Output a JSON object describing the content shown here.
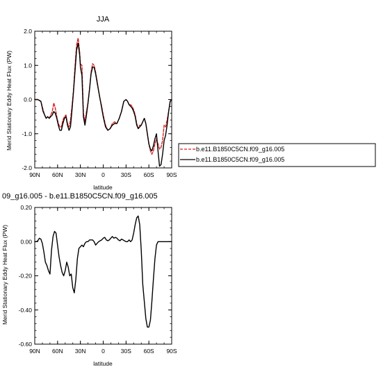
{
  "chart_data": [
    {
      "type": "line",
      "title": "JJA",
      "xlabel": "latitude",
      "ylabel": "Merid Stationary Eddy Heat Flux (PW)",
      "xlim": [
        90,
        -90
      ],
      "ylim": [
        -2.0,
        2.0
      ],
      "x_ticks": [
        {
          "value": 90,
          "label": "90N"
        },
        {
          "value": 60,
          "label": "60N"
        },
        {
          "value": 30,
          "label": "30N"
        },
        {
          "value": 0,
          "label": "0"
        },
        {
          "value": -30,
          "label": "30S"
        },
        {
          "value": -60,
          "label": "60S"
        },
        {
          "value": -90,
          "label": "90S"
        }
      ],
      "y_ticks": [
        {
          "value": 2.0,
          "label": "2.0"
        },
        {
          "value": 1.0,
          "label": "1.0"
        },
        {
          "value": 0.0,
          "label": "0.0"
        },
        {
          "value": -1.0,
          "label": "-1.0"
        },
        {
          "value": -2.0,
          "label": "-2.0"
        }
      ],
      "legend_placement": "right",
      "series": [
        {
          "name": "b.e11.B1850C5CN.f09_g16.005",
          "color": "#d62020",
          "dash": "dashed",
          "x": [
            90,
            86,
            82,
            79,
            77,
            75,
            73,
            71,
            69,
            67,
            65,
            63,
            61,
            59,
            57,
            55,
            53,
            51,
            49,
            47,
            45,
            43,
            41,
            39,
            37,
            35,
            33,
            31,
            30,
            28,
            26,
            24,
            22,
            20,
            18,
            16,
            14,
            12,
            10,
            8,
            6,
            4,
            2,
            0,
            -3,
            -6,
            -9,
            -12,
            -15,
            -18,
            -21,
            -24,
            -27,
            -30,
            -32,
            -34,
            -36,
            -38,
            -40,
            -42,
            -44,
            -46,
            -48,
            -50,
            -52,
            -54,
            -56,
            -58,
            -60,
            -62,
            -64,
            -66,
            -68,
            -70,
            -72,
            -74,
            -76,
            -78,
            -80,
            -82,
            -84,
            -86,
            -88,
            -90
          ],
          "y": [
            0.0,
            0.0,
            -0.05,
            -0.3,
            -0.45,
            -0.55,
            -0.5,
            -0.55,
            -0.45,
            -0.35,
            -0.1,
            -0.25,
            -0.5,
            -0.7,
            -0.8,
            -0.8,
            -0.6,
            -0.5,
            -0.45,
            -0.7,
            -0.8,
            -0.6,
            -0.2,
            0.3,
            1.0,
            1.6,
            1.8,
            1.4,
            1.05,
            1.0,
            -0.4,
            -0.65,
            -0.35,
            -0.1,
            0.3,
            0.8,
            1.05,
            1.0,
            0.8,
            0.55,
            0.25,
            0.0,
            -0.2,
            -0.45,
            -0.75,
            -0.9,
            -0.85,
            -0.7,
            -0.65,
            -0.7,
            -0.55,
            -0.35,
            -0.05,
            0.0,
            -0.05,
            -0.15,
            -0.15,
            -0.2,
            -0.3,
            -0.45,
            -0.7,
            -0.85,
            -0.75,
            -0.75,
            -0.65,
            -0.55,
            -0.7,
            -1.0,
            -1.3,
            -1.5,
            -1.6,
            -1.5,
            -1.3,
            -1.15,
            -1.3,
            -1.45,
            -1.4,
            -1.2,
            -0.75,
            -0.8,
            -0.6,
            -0.35,
            -0.05,
            0.0
          ]
        },
        {
          "name": "b.e11.B1850C5CN.f09_g16.005",
          "color": "#000000",
          "dash": "solid",
          "x": [
            90,
            86,
            82,
            79,
            77,
            75,
            73,
            71,
            69,
            67,
            65,
            63,
            61,
            59,
            57,
            55,
            53,
            51,
            49,
            47,
            45,
            43,
            41,
            39,
            37,
            35,
            33,
            31,
            30,
            28,
            26,
            24,
            22,
            20,
            18,
            16,
            14,
            12,
            10,
            8,
            6,
            4,
            2,
            0,
            -3,
            -6,
            -9,
            -12,
            -15,
            -18,
            -21,
            -24,
            -27,
            -30,
            -32,
            -34,
            -36,
            -38,
            -40,
            -42,
            -44,
            -46,
            -48,
            -50,
            -52,
            -54,
            -56,
            -58,
            -60,
            -62,
            -64,
            -66,
            -68,
            -70,
            -72,
            -74,
            -76,
            -78,
            -80,
            -82,
            -84,
            -86,
            -88,
            -90
          ],
          "y": [
            0.0,
            0.0,
            -0.05,
            -0.35,
            -0.45,
            -0.55,
            -0.5,
            -0.55,
            -0.5,
            -0.45,
            -0.35,
            -0.4,
            -0.55,
            -0.75,
            -0.9,
            -0.9,
            -0.7,
            -0.55,
            -0.5,
            -0.75,
            -0.9,
            -0.8,
            -0.3,
            0.25,
            0.85,
            1.45,
            1.65,
            1.3,
            0.95,
            0.7,
            -0.5,
            -0.75,
            -0.45,
            -0.1,
            0.3,
            0.75,
            0.95,
            0.95,
            0.75,
            0.5,
            0.25,
            0.0,
            -0.25,
            -0.5,
            -0.8,
            -0.9,
            -0.85,
            -0.75,
            -0.7,
            -0.7,
            -0.55,
            -0.35,
            -0.05,
            0.0,
            -0.05,
            -0.15,
            -0.2,
            -0.25,
            -0.35,
            -0.5,
            -0.75,
            -0.85,
            -0.8,
            -0.75,
            -0.65,
            -0.55,
            -0.7,
            -1.0,
            -1.3,
            -1.45,
            -1.5,
            -1.35,
            -1.15,
            -1.0,
            -1.5,
            -1.95,
            -1.9,
            -1.6,
            -1.2,
            -1.05,
            -0.75,
            -0.35,
            -0.05,
            0.0
          ]
        }
      ]
    },
    {
      "type": "line",
      "title": "09_g16.005 - b.e11.B1850C5CN.f09_g16.005",
      "xlabel": "latitude",
      "ylabel": "Merid Stationary Eddy Heat Flux (PW)",
      "xlim": [
        90,
        -90
      ],
      "ylim": [
        -0.6,
        0.2
      ],
      "x_ticks": [
        {
          "value": 90,
          "label": "90N"
        },
        {
          "value": 60,
          "label": "60N"
        },
        {
          "value": 30,
          "label": "30N"
        },
        {
          "value": 0,
          "label": "0"
        },
        {
          "value": -30,
          "label": "30S"
        },
        {
          "value": -60,
          "label": "60S"
        },
        {
          "value": -90,
          "label": "90S"
        }
      ],
      "y_ticks": [
        {
          "value": 0.2,
          "label": "0.20"
        },
        {
          "value": 0.0,
          "label": "0.00"
        },
        {
          "value": -0.2,
          "label": "-0.20"
        },
        {
          "value": -0.4,
          "label": "-0.40"
        },
        {
          "value": -0.6,
          "label": "-0.60"
        }
      ],
      "series": [
        {
          "color": "#000000",
          "dash": "solid",
          "x": [
            90,
            88,
            86,
            84,
            82,
            80,
            78,
            76,
            74,
            72,
            70,
            68,
            66,
            64,
            62,
            60,
            58,
            56,
            54,
            52,
            50,
            48,
            46,
            44,
            42,
            40,
            38,
            36,
            34,
            32,
            30,
            28,
            26,
            24,
            22,
            20,
            18,
            16,
            14,
            12,
            10,
            8,
            6,
            4,
            2,
            0,
            -2,
            -4,
            -6,
            -8,
            -10,
            -12,
            -14,
            -16,
            -18,
            -20,
            -22,
            -24,
            -26,
            -28,
            -30,
            -32,
            -34,
            -36,
            -38,
            -40,
            -42,
            -44,
            -46,
            -48,
            -50,
            -52,
            -54,
            -56,
            -58,
            -60,
            -62,
            -64,
            -66,
            -68,
            -70,
            -72,
            -74,
            -76,
            -78,
            -80,
            -82,
            -84,
            -86,
            -88,
            -90
          ],
          "y": [
            0.0,
            0.0,
            0.005,
            0.02,
            0.015,
            -0.01,
            -0.06,
            -0.12,
            -0.14,
            -0.17,
            -0.19,
            -0.05,
            0.03,
            0.06,
            0.05,
            -0.02,
            -0.09,
            -0.14,
            -0.18,
            -0.2,
            -0.17,
            -0.12,
            -0.15,
            -0.2,
            -0.19,
            -0.27,
            -0.3,
            -0.22,
            -0.1,
            -0.04,
            -0.03,
            -0.02,
            -0.03,
            -0.01,
            0.0,
            0.0,
            0.01,
            0.01,
            0.01,
            0.0,
            -0.02,
            -0.01,
            0.0,
            0.005,
            0.01,
            0.02,
            0.025,
            0.01,
            0.005,
            0.01,
            0.02,
            0.03,
            0.02,
            0.025,
            0.02,
            0.01,
            0.005,
            0.015,
            0.01,
            0.005,
            0.0,
            0.0,
            0.01,
            0.0,
            0.01,
            0.05,
            0.1,
            0.14,
            0.15,
            0.1,
            -0.05,
            -0.25,
            -0.35,
            -0.45,
            -0.5,
            -0.5,
            -0.46,
            -0.35,
            -0.22,
            -0.1,
            -0.02,
            0.0,
            0.0,
            0.0,
            0.0,
            0.0,
            0.0,
            0.0,
            0.0,
            0.0,
            0.0
          ]
        }
      ]
    }
  ]
}
